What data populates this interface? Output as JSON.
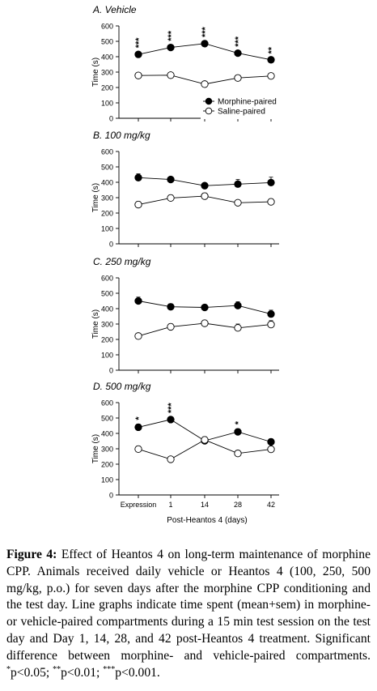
{
  "chart_data": [
    {
      "type": "line",
      "title": "A. Vehicle",
      "xlabel": "",
      "ylabel": "Time (s)",
      "ylim": [
        0,
        600
      ],
      "yticks": [
        0,
        100,
        200,
        300,
        400,
        500,
        600
      ],
      "categories": [
        "Expression",
        "1",
        "14",
        "28",
        "42"
      ],
      "legend": {
        "placement": "bottom-right"
      },
      "series": [
        {
          "name": "Morphine-paired",
          "marker": "filled-circle",
          "values": [
            415,
            460,
            485,
            423,
            380
          ],
          "errors": [
            15,
            15,
            15,
            15,
            12
          ]
        },
        {
          "name": "Saline-paired",
          "marker": "open-circle",
          "values": [
            278,
            280,
            222,
            262,
            275
          ],
          "errors": [
            18,
            15,
            10,
            18,
            18
          ]
        }
      ],
      "significance": [
        "***",
        "***",
        "***",
        "***",
        "**"
      ]
    },
    {
      "type": "line",
      "title": "B. 100 mg/kg",
      "xlabel": "",
      "ylabel": "Time (s)",
      "ylim": [
        0,
        600
      ],
      "yticks": [
        0,
        100,
        200,
        300,
        400,
        500,
        600
      ],
      "categories": [
        "Expression",
        "1",
        "14",
        "28",
        "42"
      ],
      "series": [
        {
          "name": "Morphine-paired",
          "marker": "filled-circle",
          "values": [
            430,
            418,
            378,
            388,
            398
          ],
          "errors": [
            25,
            12,
            15,
            30,
            35
          ]
        },
        {
          "name": "Saline-paired",
          "marker": "open-circle",
          "values": [
            255,
            298,
            310,
            267,
            273
          ],
          "errors": [
            20,
            20,
            20,
            15,
            20
          ]
        }
      ],
      "significance": [
        "",
        "",
        "",
        "",
        ""
      ]
    },
    {
      "type": "line",
      "title": "C. 250 mg/kg",
      "xlabel": "",
      "ylabel": "Time (s)",
      "ylim": [
        0,
        600
      ],
      "yticks": [
        0,
        100,
        200,
        300,
        400,
        500,
        600
      ],
      "categories": [
        "Expression",
        "1",
        "14",
        "28",
        "42"
      ],
      "series": [
        {
          "name": "Morphine-paired",
          "marker": "filled-circle",
          "values": [
            450,
            412,
            408,
            420,
            365
          ],
          "errors": [
            25,
            20,
            15,
            25,
            25
          ]
        },
        {
          "name": "Saline-paired",
          "marker": "open-circle",
          "values": [
            222,
            282,
            305,
            275,
            297
          ],
          "errors": [
            15,
            20,
            20,
            25,
            25
          ]
        }
      ],
      "significance": [
        "",
        "",
        "",
        "",
        ""
      ]
    },
    {
      "type": "line",
      "title": "D. 500 mg/kg",
      "xlabel": "Post-Heantos 4 (days)",
      "ylabel": "Time (s)",
      "ylim": [
        0,
        600
      ],
      "yticks": [
        0,
        100,
        200,
        300,
        400,
        500,
        600
      ],
      "categories": [
        "Expression",
        "1",
        "14",
        "28",
        "42"
      ],
      "series": [
        {
          "name": "Morphine-paired",
          "marker": "filled-circle",
          "values": [
            440,
            490,
            352,
            410,
            345
          ],
          "errors": [
            20,
            15,
            20,
            20,
            20
          ]
        },
        {
          "name": "Saline-paired",
          "marker": "open-circle",
          "values": [
            298,
            232,
            358,
            270,
            297
          ],
          "errors": [
            20,
            10,
            20,
            20,
            15
          ]
        }
      ],
      "significance": [
        "*",
        "***",
        "",
        "*",
        ""
      ]
    }
  ],
  "caption": {
    "label": "Figure 4:",
    "text": "Effect of Heantos 4 on long-term maintenance of morphine CPP. Animals received daily vehicle or Heantos 4 (100, 250, 500 mg/kg, p.o.) for seven days after the morphine CPP conditioning and the test day. Line graphs indicate time spent (mean+sem) in morphine- or vehicle-paired compartments during a 15 min test session on the test day and Day 1, 14, 28, and 42 post-Heantos 4 treatment. Significant difference between morphine- and vehicle-paired compartments.",
    "sig1_mark": "*",
    "sig1_text": "p<0.05; ",
    "sig2_mark": "**",
    "sig2_text": "p<0.01; ",
    "sig3_mark": "***",
    "sig3_text": "p<0.001."
  },
  "colors": {
    "line": "#000000",
    "filled_marker": "#000000",
    "open_marker_fill": "#ffffff",
    "axis": "#000000"
  }
}
